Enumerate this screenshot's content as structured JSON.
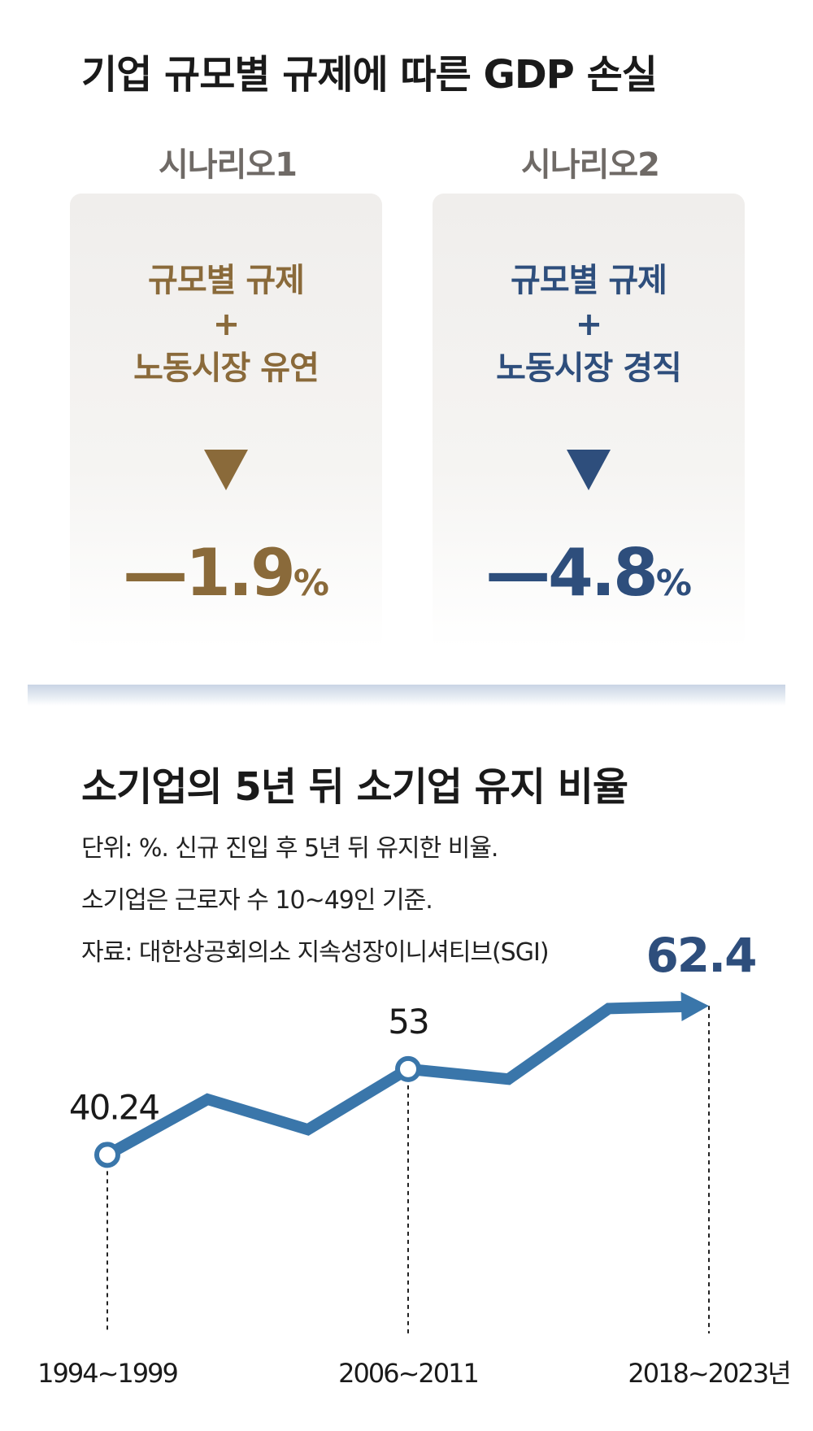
{
  "infographic": {
    "title": "기업 규모별 규제에 따른 GDP 손실",
    "scenarios": [
      {
        "label": "시나리오1",
        "line1": "규모별 규제",
        "line2": "+",
        "line3": "노동시장 유연",
        "value": "—1.9",
        "unit": "%",
        "color": "#8a6a3a"
      },
      {
        "label": "시나리오2",
        "line1": "규모별 규제",
        "line2": "+",
        "line3": "노동시장 경직",
        "value": "—4.8",
        "unit": "%",
        "color": "#2e4e7c"
      }
    ]
  },
  "chart_section": {
    "title": "소기업의 5년 뒤 소기업 유지 비율",
    "note1": "단위: %. 신규 진입 후 5년 뒤 유지한 비율.",
    "note2": "소기업은 근로자 수 10~49인 기준.",
    "source": "자료: 대한상공회의소 지속성장이니셔티브(SGI)"
  },
  "chart_data": {
    "type": "line",
    "x": [
      "1994~1999",
      "",
      "",
      "2006~2011",
      "",
      "",
      "2018~2023년"
    ],
    "values": [
      40.24,
      48.5,
      44.0,
      53,
      51.5,
      62.0,
      62.4
    ],
    "data_labels": [
      {
        "index": 0,
        "text": "40.24"
      },
      {
        "index": 3,
        "text": "53"
      },
      {
        "index": 6,
        "text": "62.4"
      }
    ],
    "tick_labels": [
      {
        "index": 0,
        "text": "1994~1999"
      },
      {
        "index": 3,
        "text": "2006~2011"
      },
      {
        "index": 6,
        "text": "2018~2023년"
      }
    ],
    "ylim": [
      30,
      70
    ],
    "grid": false,
    "colors": {
      "line": "#3a76aa",
      "marker_fill": "#ffffff",
      "highlight": "#2e4e7c"
    }
  }
}
